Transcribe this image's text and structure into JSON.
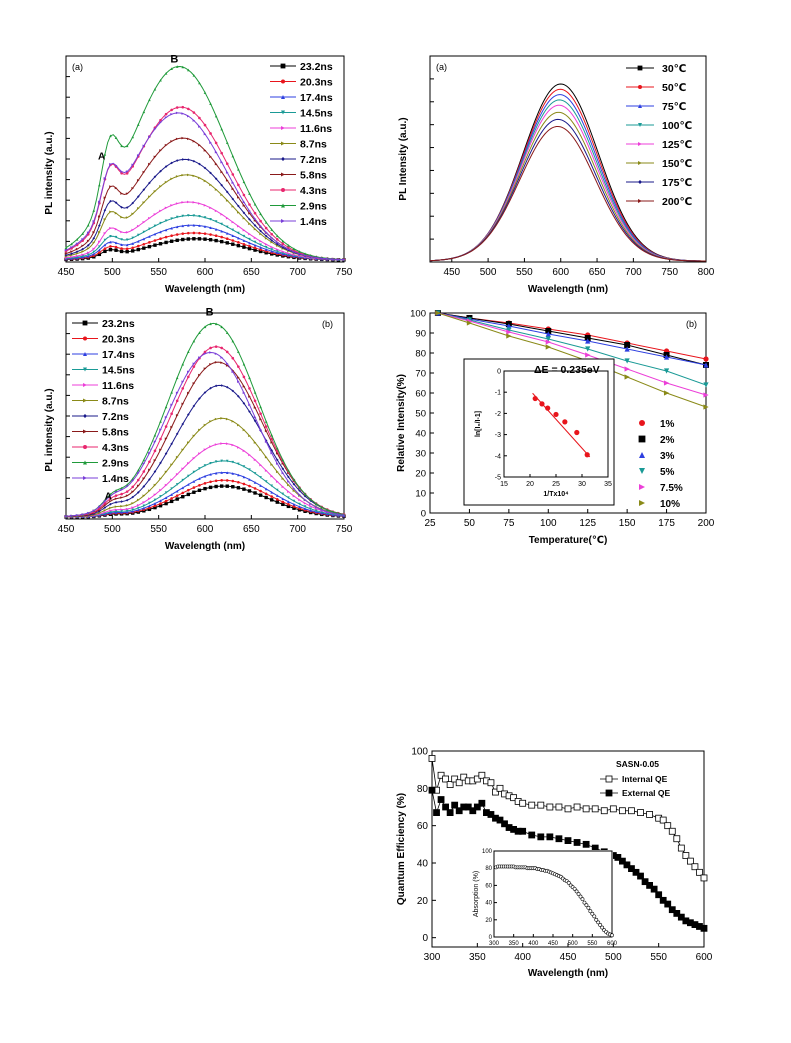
{
  "colors": [
    "#000000",
    "#e8151c",
    "#2d3fe0",
    "#1a9a96",
    "#ec3fd8",
    "#8a8a18",
    "#1a1a8a",
    "#8a1a1a",
    "#e8266e",
    "#1f9a3a",
    "#7a3fd8"
  ],
  "chart_data": [
    {
      "type": "line",
      "label": "(a)",
      "xlabel": "Wavelength (nm)",
      "ylabel": "PL intensity (a.u.)",
      "xlim": [
        450,
        750
      ],
      "xticks": [
        450,
        500,
        550,
        600,
        650,
        700,
        750
      ],
      "yticks_labeled": false,
      "annotations": [
        "A",
        "B"
      ],
      "legend_position": "top-right",
      "series": [
        {
          "name": "23.2ns",
          "peak_nm": 590,
          "peak": 0.11
        },
        {
          "name": "20.3ns",
          "peak_nm": 588,
          "peak": 0.14
        },
        {
          "name": "17.4ns",
          "peak_nm": 586,
          "peak": 0.18
        },
        {
          "name": "14.5ns",
          "peak_nm": 584,
          "peak": 0.23
        },
        {
          "name": "11.6ns",
          "peak_nm": 582,
          "peak": 0.3
        },
        {
          "name": "8.7ns",
          "peak_nm": 580,
          "peak": 0.44
        },
        {
          "name": "7.2ns",
          "peak_nm": 578,
          "peak": 0.52
        },
        {
          "name": "5.8ns",
          "peak_nm": 576,
          "peak": 0.63
        },
        {
          "name": "4.3ns",
          "peak_nm": 574,
          "peak": 0.79
        },
        {
          "name": "2.9ns",
          "peak_nm": 572,
          "peak": 1.0
        },
        {
          "name": "1.4ns",
          "peak_nm": 571,
          "peak": 0.76
        }
      ]
    },
    {
      "type": "line",
      "label": "(a)",
      "xlabel": "Wavelength (nm)",
      "ylabel": "PL Intensity (a.u.)",
      "xlim": [
        420,
        800
      ],
      "xticks": [
        450,
        500,
        550,
        600,
        650,
        700,
        750,
        800
      ],
      "yticks_labeled": false,
      "legend_position": "top-right",
      "series": [
        {
          "name": "30℃",
          "peak": 1.0
        },
        {
          "name": "50℃",
          "peak": 0.97
        },
        {
          "name": "75℃",
          "peak": 0.94
        },
        {
          "name": "100℃",
          "peak": 0.91
        },
        {
          "name": "125℃",
          "peak": 0.88
        },
        {
          "name": "150℃",
          "peak": 0.84
        },
        {
          "name": "175℃",
          "peak": 0.8
        },
        {
          "name": "200℃",
          "peak": 0.76
        }
      ]
    },
    {
      "type": "line",
      "label": "(b)",
      "xlabel": "Wavelength (nm)",
      "ylabel": "PL intensity (a.u.)",
      "xlim": [
        450,
        750
      ],
      "xticks": [
        450,
        500,
        550,
        600,
        650,
        700,
        750
      ],
      "yticks_labeled": false,
      "annotations": [
        "A",
        "B"
      ],
      "legend_position": "top-left",
      "series": [
        {
          "name": "23.2ns",
          "peak_nm": 620,
          "peak": 0.16
        },
        {
          "name": "20.3ns",
          "peak_nm": 620,
          "peak": 0.19
        },
        {
          "name": "17.4ns",
          "peak_nm": 620,
          "peak": 0.23
        },
        {
          "name": "14.5ns",
          "peak_nm": 620,
          "peak": 0.29
        },
        {
          "name": "11.6ns",
          "peak_nm": 620,
          "peak": 0.38
        },
        {
          "name": "8.7ns",
          "peak_nm": 618,
          "peak": 0.51
        },
        {
          "name": "7.2ns",
          "peak_nm": 616,
          "peak": 0.68
        },
        {
          "name": "5.8ns",
          "peak_nm": 614,
          "peak": 0.8
        },
        {
          "name": "4.3ns",
          "peak_nm": 612,
          "peak": 0.88
        },
        {
          "name": "2.9ns",
          "peak_nm": 609,
          "peak": 1.0
        },
        {
          "name": "1.4ns",
          "peak_nm": 606,
          "peak": 0.85
        }
      ]
    },
    {
      "type": "line",
      "label": "(b)",
      "xlabel": "Temperature(℃)",
      "ylabel": "Relative  Intensity(%)",
      "xlim": [
        25,
        200
      ],
      "ylim": [
        0,
        100
      ],
      "xticks": [
        25,
        50,
        75,
        100,
        125,
        150,
        175,
        200
      ],
      "yticks": [
        0,
        10,
        20,
        30,
        40,
        50,
        60,
        70,
        80,
        90,
        100
      ],
      "legend_position": "right",
      "x": [
        30,
        50,
        75,
        100,
        125,
        150,
        175,
        200
      ],
      "series": [
        {
          "name": "1%",
          "values": [
            100,
            97.5,
            95,
            92,
            89,
            85,
            81,
            77
          ]
        },
        {
          "name": "2%",
          "values": [
            100,
            97.5,
            94.5,
            91,
            87.5,
            84,
            79,
            74
          ]
        },
        {
          "name": "3%",
          "values": [
            100,
            97,
            93.5,
            89.5,
            86,
            82,
            78,
            74
          ]
        },
        {
          "name": "5%",
          "values": [
            100,
            96.5,
            91.5,
            87,
            82,
            76,
            71,
            64
          ]
        },
        {
          "name": "7.5%",
          "values": [
            100,
            96,
            90.5,
            85.5,
            79,
            72,
            65,
            59
          ]
        },
        {
          "name": "10%",
          "values": [
            100,
            95,
            88.5,
            83,
            76,
            68,
            60,
            53
          ]
        }
      ],
      "inset": {
        "type": "scatter",
        "title": "ΔE = 0.235eV",
        "xlabel": "1/Tx10⁴",
        "ylabel": "ln[I₀/I-1]",
        "xlim": [
          15,
          35
        ],
        "ylim": [
          -5,
          0
        ],
        "xticks": [
          15,
          20,
          25,
          30,
          35
        ],
        "yticks": [
          -5,
          -4,
          -3,
          -2,
          -1,
          0
        ],
        "x": [
          21.0,
          22.3,
          23.4,
          25.0,
          26.7,
          29.0,
          31.0
        ],
        "y": [
          -1.3,
          -1.55,
          -1.75,
          -2.05,
          -2.4,
          -2.9,
          -3.95
        ],
        "fit": [
          [
            20.5,
            -1.05
          ],
          [
            31.5,
            -4.05
          ]
        ]
      }
    },
    {
      "type": "scatter",
      "title": "SASN-0.05",
      "xlabel": "Wavelength (nm)",
      "ylabel": "Quantum Efficiency (%)",
      "xlim": [
        300,
        600
      ],
      "ylim": [
        -5,
        100
      ],
      "xticks": [
        300,
        350,
        400,
        450,
        500,
        550,
        600
      ],
      "yticks": [
        0,
        20,
        40,
        60,
        80,
        100
      ],
      "legend_position": "top-right",
      "series": [
        {
          "name": "Internal QE",
          "x": [
            300,
            305,
            310,
            315,
            320,
            325,
            330,
            335,
            340,
            345,
            350,
            355,
            360,
            365,
            370,
            375,
            380,
            385,
            390,
            395,
            400,
            410,
            420,
            430,
            440,
            450,
            460,
            470,
            480,
            490,
            500,
            510,
            520,
            530,
            540,
            550,
            555,
            560,
            565,
            570,
            575,
            580,
            585,
            590,
            595,
            600
          ],
          "values": [
            96,
            79,
            87,
            85,
            82,
            85,
            83,
            86,
            84,
            84,
            85,
            87,
            84,
            83,
            78,
            80,
            77,
            76,
            75,
            73,
            72,
            71,
            71,
            70,
            70,
            69,
            70,
            69,
            69,
            68,
            69,
            68,
            68,
            67,
            66,
            64,
            63,
            60,
            57,
            53,
            48,
            44,
            41,
            38,
            35,
            32
          ]
        },
        {
          "name": "External QE",
          "x": [
            300,
            305,
            310,
            315,
            320,
            325,
            330,
            335,
            340,
            345,
            350,
            355,
            360,
            365,
            370,
            375,
            380,
            385,
            390,
            395,
            400,
            410,
            420,
            430,
            440,
            450,
            460,
            470,
            480,
            490,
            500,
            505,
            510,
            515,
            520,
            525,
            530,
            535,
            540,
            545,
            550,
            555,
            560,
            565,
            570,
            575,
            580,
            585,
            590,
            595,
            600
          ],
          "values": [
            79,
            67,
            74,
            70,
            67,
            71,
            68,
            70,
            70,
            68,
            70,
            72,
            67,
            66,
            64,
            63,
            61,
            59,
            58,
            57,
            57,
            55,
            54,
            54,
            53,
            52,
            51,
            50,
            48,
            46,
            44,
            43,
            41,
            39,
            37,
            35,
            33,
            30,
            28,
            26,
            23,
            20,
            18,
            15,
            13,
            11,
            9,
            8,
            7,
            6,
            5
          ]
        }
      ],
      "inset": {
        "ylabel": "Absorption (%)",
        "xlim": [
          300,
          600
        ],
        "ylim": [
          0,
          100
        ],
        "xticks": [
          300,
          350,
          400,
          450,
          500,
          550,
          600
        ],
        "yticks": [
          0,
          20,
          40,
          60,
          80,
          100
        ],
        "x": [
          305,
          310,
          315,
          320,
          325,
          330,
          335,
          340,
          345,
          350,
          355,
          360,
          365,
          370,
          375,
          380,
          385,
          390,
          395,
          400,
          405,
          410,
          415,
          420,
          425,
          430,
          435,
          440,
          445,
          450,
          455,
          460,
          465,
          470,
          475,
          480,
          485,
          490,
          495,
          500,
          505,
          510,
          515,
          520,
          525,
          530,
          535,
          540,
          545,
          550,
          555,
          560,
          565,
          570,
          575,
          580,
          585,
          590,
          595,
          600
        ],
        "values": [
          81,
          82,
          82,
          82,
          82,
          82,
          82,
          82,
          82,
          82,
          81,
          81,
          81,
          81,
          81,
          81,
          80,
          80,
          80,
          80,
          80,
          79,
          79,
          78,
          78,
          77,
          77,
          76,
          75,
          74,
          73,
          72,
          71,
          70,
          68,
          66,
          65,
          63,
          60,
          58,
          56,
          53,
          50,
          47,
          44,
          40,
          37,
          34,
          30,
          27,
          24,
          20,
          17,
          14,
          11,
          8,
          6,
          4,
          3,
          2
        ]
      }
    }
  ]
}
